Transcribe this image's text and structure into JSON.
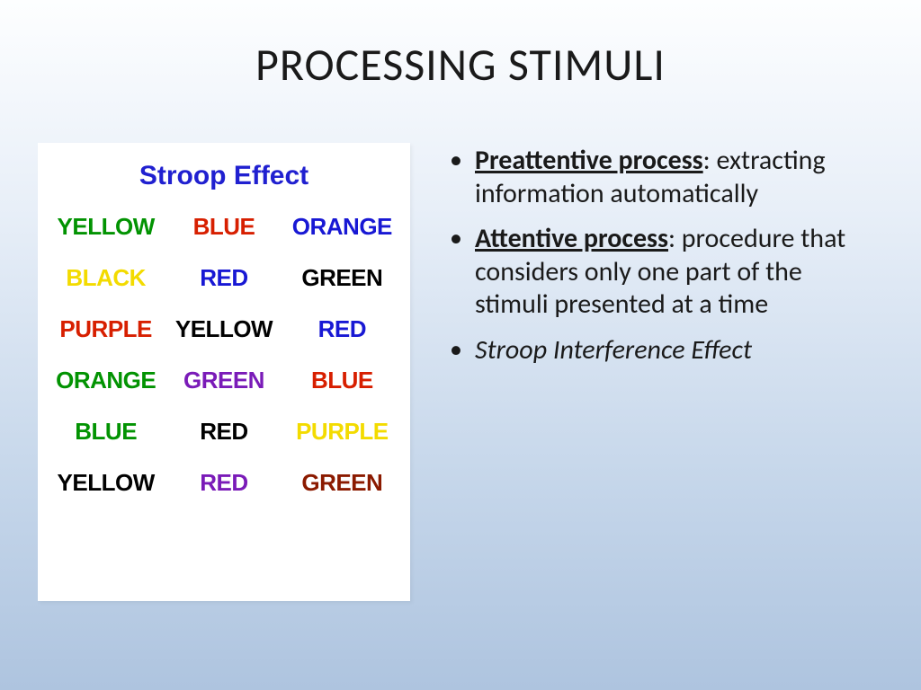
{
  "slide": {
    "title": "PROCESSING STIMULI",
    "background_gradient": [
      "#fdfeff",
      "#e8eff8",
      "#c5d6ea",
      "#aec4df"
    ],
    "title_fontsize": 50,
    "body_fontsize": 30
  },
  "stroop": {
    "title": "Stroop Effect",
    "title_color": "#2020d0",
    "title_fontsize": 30,
    "background": "#ffffff",
    "word_fontsize": 26,
    "rows": [
      [
        {
          "text": "YELLOW",
          "color": "#029302"
        },
        {
          "text": "BLUE",
          "color": "#d71f00"
        },
        {
          "text": "ORANGE",
          "color": "#1818d4"
        }
      ],
      [
        {
          "text": "BLACK",
          "color": "#f3db00"
        },
        {
          "text": "RED",
          "color": "#1818d4"
        },
        {
          "text": "GREEN",
          "color": "#010101"
        }
      ],
      [
        {
          "text": "PURPLE",
          "color": "#d71f00"
        },
        {
          "text": "YELLOW",
          "color": "#010101"
        },
        {
          "text": "RED",
          "color": "#1818d4"
        }
      ],
      [
        {
          "text": "ORANGE",
          "color": "#029302"
        },
        {
          "text": "GREEN",
          "color": "#7a1bb8"
        },
        {
          "text": "BLUE",
          "color": "#d71f00"
        }
      ],
      [
        {
          "text": "BLUE",
          "color": "#029302"
        },
        {
          "text": "RED",
          "color": "#010101"
        },
        {
          "text": "PURPLE",
          "color": "#f3db00"
        }
      ],
      [
        {
          "text": "YELLOW",
          "color": "#010101"
        },
        {
          "text": "RED",
          "color": "#7a1bb8"
        },
        {
          "text": "GREEN",
          "color": "#8b1a00"
        }
      ]
    ]
  },
  "bullets": [
    {
      "term": "Preattentive process",
      "rest": ": extracting information automatically",
      "style": "term"
    },
    {
      "term": "Attentive process",
      "rest": ": procedure that considers only one part of the stimuli presented at a time",
      "style": "term"
    },
    {
      "term": "Stroop Interference Effect",
      "rest": "",
      "style": "italic"
    }
  ]
}
